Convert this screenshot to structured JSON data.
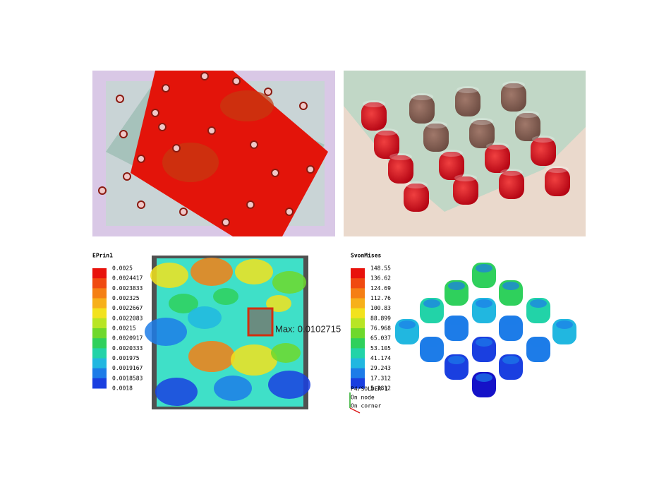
{
  "strain_legend": {
    "title": "EPrin1",
    "labels": [
      "0.0025",
      "0.0024417",
      "0.0023833",
      "0.002325",
      "0.0022667",
      "0.0022083",
      "0.00215",
      "0.0020917",
      "0.0020333",
      "0.001975",
      "0.0019167",
      "0.0018583",
      "0.0018"
    ],
    "colors": [
      "#e8120c",
      "#f04a10",
      "#f57f14",
      "#f7b01a",
      "#f2e21d",
      "#b8e524",
      "#6ed82c",
      "#2fd05c",
      "#22d3a8",
      "#21b7e0",
      "#1d7ce8",
      "#1a3fe0",
      "#1512c8"
    ]
  },
  "max_label": "Max: 0.0102715",
  "stress_legend": {
    "title": "SvonMises",
    "labels": [
      "148.55",
      "136.62",
      "124.69",
      "112.76",
      "100.83",
      "88.899",
      "76.968",
      "65.037",
      "53.105",
      "41.174",
      "29.243",
      "17.312",
      "5.3812"
    ],
    "colors": [
      "#e8120c",
      "#f04a10",
      "#f57f14",
      "#f7b01a",
      "#f2e21d",
      "#b8e524",
      "#6ed82c",
      "#2fd05c",
      "#22d3a8",
      "#21b7e0",
      "#1d7ce8",
      "#1a3fe0",
      "#1512c8"
    ]
  },
  "triad": {
    "part": "P4/SOLDER-1",
    "lines": [
      "On node",
      "On corner"
    ]
  }
}
